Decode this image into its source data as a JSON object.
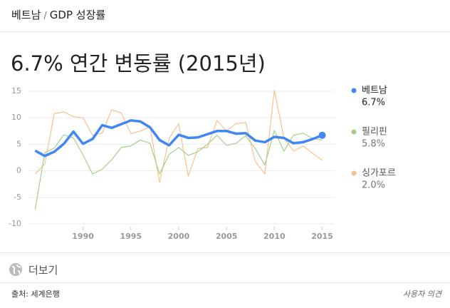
{
  "breadcrumb": {
    "country": "베트남",
    "separator": "/",
    "topic": "GDP 성장률"
  },
  "chart_data": {
    "type": "line",
    "title": "6.7% 연간 변동률 (2015년)",
    "x": [
      1985,
      1986,
      1987,
      1988,
      1989,
      1990,
      1991,
      1992,
      1993,
      1994,
      1995,
      1996,
      1997,
      1998,
      1999,
      2000,
      2001,
      2002,
      2003,
      2004,
      2005,
      2006,
      2007,
      2008,
      2009,
      2010,
      2011,
      2012,
      2013,
      2014,
      2015
    ],
    "xlim": [
      1984.3,
      2016.3
    ],
    "xticks": [
      1990,
      1995,
      2000,
      2005,
      2010,
      2015
    ],
    "ylim": [
      -10,
      15
    ],
    "yticks": [
      15,
      10,
      5,
      0,
      -5,
      -10
    ],
    "grid": true,
    "legend": "right",
    "series": [
      {
        "name": "베트남",
        "color": "#4285f4",
        "latest_label": "6.7%",
        "values": [
          3.8,
          2.8,
          3.6,
          5.1,
          7.4,
          5.1,
          6.0,
          8.6,
          8.1,
          8.8,
          9.5,
          9.3,
          8.2,
          5.8,
          4.8,
          6.8,
          6.2,
          6.3,
          6.9,
          7.5,
          7.5,
          7.0,
          7.1,
          5.7,
          5.4,
          6.4,
          6.2,
          5.2,
          5.4,
          6.0,
          6.7
        ]
      },
      {
        "name": "필리핀",
        "color": "#a3d18c",
        "latest_label": "5.8%",
        "values": [
          -7.3,
          3.4,
          4.3,
          6.8,
          6.2,
          3.0,
          -0.6,
          0.3,
          2.1,
          4.4,
          4.7,
          5.8,
          5.2,
          -0.6,
          3.1,
          4.4,
          2.9,
          3.6,
          5.0,
          6.7,
          4.8,
          5.2,
          6.6,
          4.2,
          1.1,
          7.6,
          3.7,
          6.7,
          7.1,
          6.1,
          5.8
        ]
      },
      {
        "name": "싱가포르",
        "color": "#f6c28e",
        "latest_label": "2.0%",
        "values": [
          -0.6,
          1.3,
          10.8,
          11.1,
          10.2,
          10.0,
          6.7,
          7.1,
          11.5,
          10.9,
          7.0,
          7.5,
          8.3,
          -2.2,
          6.1,
          8.9,
          -1.0,
          4.2,
          4.4,
          9.5,
          7.5,
          8.9,
          9.1,
          1.8,
          -0.6,
          15.2,
          6.2,
          3.7,
          4.7,
          3.3,
          2.0
        ]
      }
    ]
  },
  "footer": {
    "more": "더보기",
    "source": "출처: 세계은행",
    "feedback": "사용자 의견"
  }
}
